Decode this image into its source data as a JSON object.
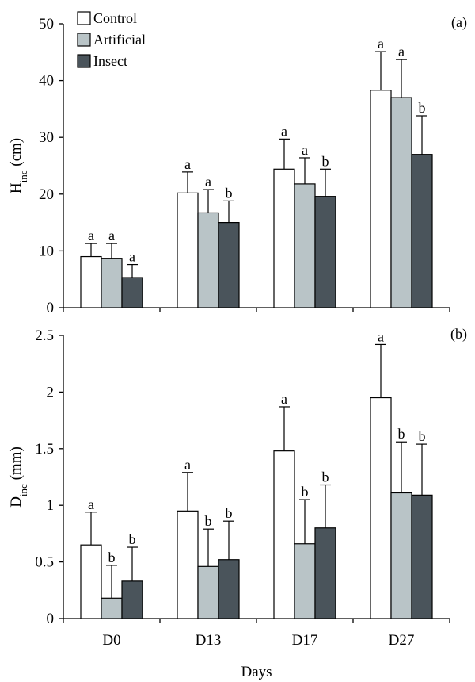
{
  "chart_data": [
    {
      "type": "bar",
      "panel_label": "(a)",
      "ylabel_main": "H",
      "ylabel_sub": "inc",
      "ylabel_unit": " (cm)",
      "xlabel": "",
      "ylim": [
        0,
        50
      ],
      "yticks": [
        "0",
        "10",
        "20",
        "30",
        "40",
        "50"
      ],
      "categories": [
        "D0",
        "D13",
        "D17",
        "D27"
      ],
      "legend_position": "top-left",
      "series": [
        {
          "name": "Control",
          "color": "#ffffff",
          "values": [
            9.0,
            20.2,
            24.4,
            38.3
          ],
          "errors": [
            2.3,
            3.7,
            5.3,
            6.8
          ],
          "labels": [
            "a",
            "a",
            "a",
            "a"
          ]
        },
        {
          "name": "Artificial",
          "color": "#b9c4c7",
          "values": [
            8.7,
            16.7,
            21.8,
            37.0
          ],
          "errors": [
            2.6,
            4.1,
            4.6,
            6.7
          ],
          "labels": [
            "a",
            "a",
            "a",
            "a"
          ]
        },
        {
          "name": "Insect",
          "color": "#4a545b",
          "values": [
            5.3,
            15.0,
            19.6,
            27.0
          ],
          "errors": [
            2.3,
            3.8,
            4.8,
            6.8
          ],
          "labels": [
            "a",
            "b",
            "b",
            "b"
          ]
        }
      ]
    },
    {
      "type": "bar",
      "panel_label": "(b)",
      "ylabel_main": "D",
      "ylabel_sub": "inc",
      "ylabel_unit": " (mm)",
      "xlabel": "Days",
      "ylim": [
        0,
        2.5
      ],
      "yticks": [
        "0",
        "0.5",
        "1",
        "1.5",
        "2",
        "2.5"
      ],
      "categories": [
        "D0",
        "D13",
        "D17",
        "D27"
      ],
      "series": [
        {
          "name": "Control",
          "color": "#ffffff",
          "values": [
            0.65,
            0.95,
            1.48,
            1.95
          ],
          "errors": [
            0.29,
            0.34,
            0.39,
            0.47
          ],
          "labels": [
            "a",
            "a",
            "a",
            "a"
          ]
        },
        {
          "name": "Artificial",
          "color": "#b9c4c7",
          "values": [
            0.18,
            0.46,
            0.66,
            1.11
          ],
          "errors": [
            0.29,
            0.33,
            0.39,
            0.45
          ],
          "labels": [
            "b",
            "b",
            "b",
            "b"
          ]
        },
        {
          "name": "Insect",
          "color": "#4a545b",
          "values": [
            0.33,
            0.52,
            0.8,
            1.09
          ],
          "errors": [
            0.3,
            0.34,
            0.38,
            0.45
          ],
          "labels": [
            "b",
            "b",
            "b",
            "b"
          ]
        }
      ]
    }
  ]
}
